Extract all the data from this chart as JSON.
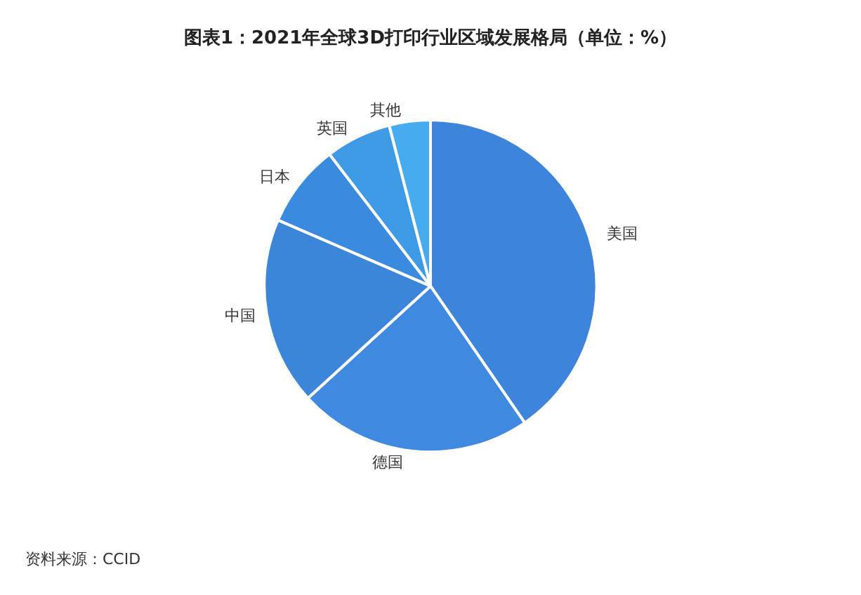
{
  "chart_data": {
    "type": "pie",
    "title": "图表1：2021年全球3D打印行业区域发展格局（单位：%）",
    "categories": [
      "美国",
      "德国",
      "中国",
      "日本",
      "英国",
      "其他"
    ],
    "values": [
      40.4,
      22.8,
      18.3,
      8.1,
      6.4,
      4.0
    ],
    "colors": [
      "#3d84dc",
      "#3f8ae0",
      "#3b86d8",
      "#3a8bdf",
      "#3f9ae6",
      "#47abf0"
    ],
    "legend": false,
    "annotations": [
      "资料来源：CCID"
    ]
  }
}
